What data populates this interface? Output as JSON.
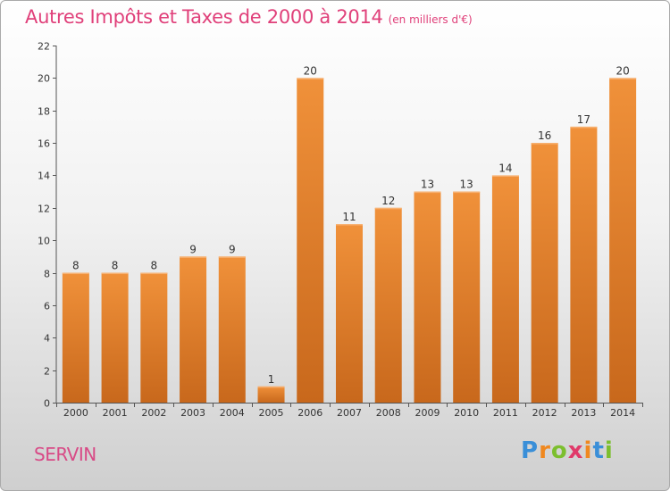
{
  "chart_data": {
    "type": "bar",
    "title": "Autres Impôts et Taxes de 2000 à 2014",
    "unit_note": "(en milliers d'€)",
    "categories": [
      "2000",
      "2001",
      "2002",
      "2003",
      "2004",
      "2005",
      "2006",
      "2007",
      "2008",
      "2009",
      "2010",
      "2011",
      "2012",
      "2013",
      "2014"
    ],
    "values": [
      8,
      8,
      8,
      9,
      9,
      1,
      20,
      11,
      12,
      13,
      13,
      14,
      16,
      17,
      20
    ],
    "ylim": [
      0,
      22
    ],
    "yticks": [
      0,
      2,
      4,
      6,
      8,
      10,
      12,
      14,
      16,
      18,
      20,
      22
    ],
    "xlabel": "",
    "ylabel": "",
    "bar_color": "#f0913a",
    "bar_color_dark": "#c8681c",
    "grid": false
  },
  "footer": {
    "place_name": "SERVIN",
    "brand": "Proxiti",
    "brand_colors": [
      "#3a8fd8",
      "#f0881f",
      "#7cbf2e",
      "#e03a6a",
      "#f0881f",
      "#3a8fd8",
      "#7cbf2e"
    ]
  },
  "colors": {
    "title": "#e0407a",
    "place": "#d84a86"
  }
}
